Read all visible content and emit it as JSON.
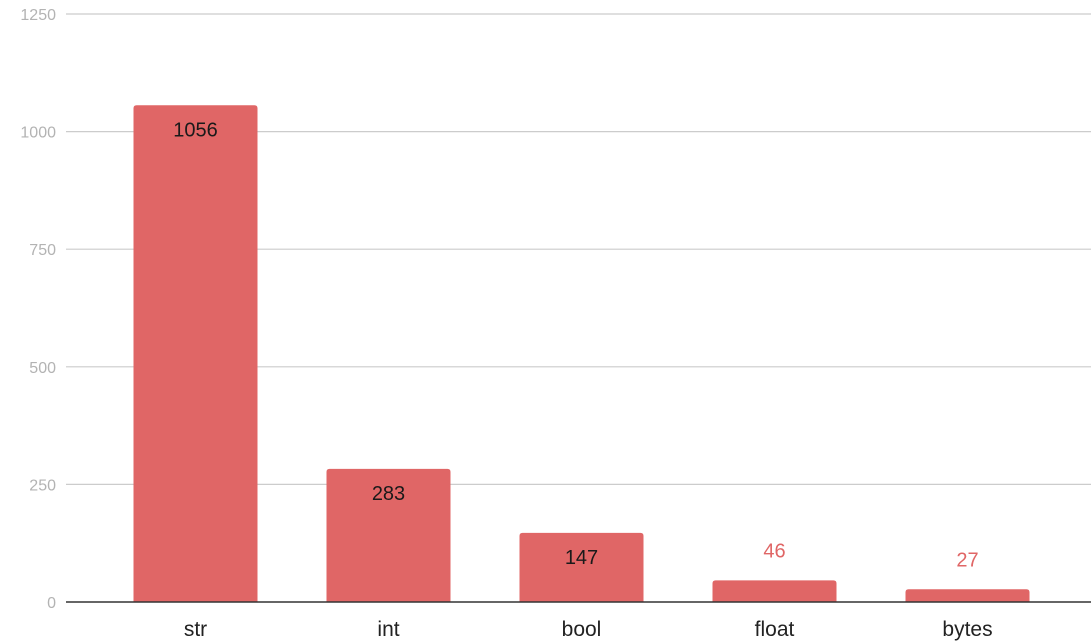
{
  "chart_data": {
    "type": "bar",
    "title": "",
    "xlabel": "",
    "ylabel": "",
    "categories": [
      "str",
      "int",
      "bool",
      "float",
      "bytes"
    ],
    "values": [
      1056,
      283,
      147,
      46,
      27
    ],
    "data_labels": [
      "1056",
      "283",
      "147",
      "46",
      "27"
    ],
    "ylim": [
      0,
      1250
    ],
    "yticks": [
      0,
      250,
      500,
      750,
      1000,
      1250
    ],
    "ytick_labels": [
      "0",
      "250",
      "500",
      "750",
      "1000",
      "1250"
    ],
    "grid": true,
    "legend": "none",
    "colors": {
      "bar": "#e06666",
      "label_inside": "#1a1a1a",
      "label_outside": "#e06666",
      "grid": "#cccccc",
      "axis": "#333333",
      "tick_text": "#b3b3b3"
    }
  }
}
